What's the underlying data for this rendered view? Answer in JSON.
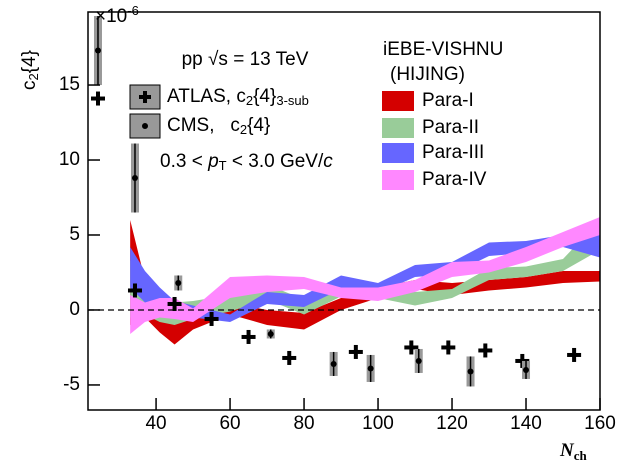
{
  "chart_data": {
    "type": "scatter",
    "ylabel": [
      "c",
      {
        "sub": "2"
      },
      "{4}"
    ],
    "xlabel": [
      {
        "it": "N"
      },
      {
        "sub": "ch"
      }
    ],
    "multiplier": [
      "×10",
      {
        "sup": "-6"
      }
    ],
    "energy_label": "pp √s = 13 TeV",
    "cut_label": [
      "0.3 < ",
      {
        "it": "p"
      },
      {
        "sub": "T"
      },
      " < 3.0 GeV/",
      {
        "it": "c"
      }
    ],
    "model_title": "iEBE-VISHNU",
    "model_subtitle": "(HIJING)",
    "xlim": [
      21.6,
      160
    ],
    "ylim": [
      -6.67,
      19.87
    ],
    "xticks": [
      40,
      60,
      80,
      100,
      120,
      140,
      160
    ],
    "yticks": [
      -5,
      0,
      5,
      10,
      15
    ],
    "series": [
      {
        "name": [
          "ATLAS, c",
          {
            "sub": "2"
          },
          "{4}",
          {
            "sub": "3-sub"
          }
        ],
        "marker": "cross",
        "color": "#000000",
        "x": [
          24.3,
          34.3,
          45,
          55,
          65,
          76,
          94,
          109,
          119,
          129,
          139,
          153
        ],
        "values": [
          14.1,
          1.3,
          0.4,
          -0.6,
          -1.8,
          -3.2,
          -2.8,
          -2.5,
          -2.5,
          -2.7,
          -3.4,
          -3.0
        ]
      },
      {
        "name": [
          "CMS,   c",
          {
            "sub": "2"
          },
          "{4}"
        ],
        "marker": "dot",
        "color": "#000000",
        "x": [
          24.3,
          34.3,
          46,
          71,
          88,
          98,
          111,
          125,
          140
        ],
        "values": [
          17.3,
          8.8,
          1.8,
          -1.6,
          -3.6,
          -3.9,
          -3.4,
          -4.1,
          -4.0
        ],
        "errors": [
          2.3,
          2.3,
          0.5,
          0.3,
          0.8,
          0.9,
          0.8,
          1.0,
          0.6
        ]
      }
    ],
    "bands": [
      {
        "name": "Para-I",
        "color": "#d40000",
        "x": [
          33,
          37,
          41,
          45,
          50,
          60,
          70,
          80,
          90,
          100,
          110,
          120,
          130,
          140,
          150,
          160
        ],
        "upper": [
          6.0,
          2.0,
          0.5,
          -0.5,
          0.0,
          0.5,
          0.0,
          -0.2,
          0.8,
          1.5,
          2.0,
          1.8,
          2.0,
          2.2,
          2.6,
          2.6
        ],
        "lower": [
          -1.0,
          -0.5,
          -1.5,
          -2.3,
          -1.3,
          -0.3,
          -1.0,
          -1.3,
          0.0,
          0.8,
          1.4,
          1.0,
          1.3,
          1.5,
          1.8,
          1.9
        ]
      },
      {
        "name": "Para-II",
        "color": "#99cc99",
        "x": [
          33,
          37,
          41,
          45,
          50,
          60,
          70,
          80,
          90,
          100,
          110,
          120,
          130,
          140,
          150,
          160
        ],
        "upper": [
          3.3,
          1.5,
          0.8,
          0.5,
          0.6,
          1.0,
          1.7,
          0.7,
          1.8,
          1.5,
          1.2,
          1.4,
          2.8,
          2.9,
          3.4,
          6.0
        ],
        "lower": [
          -0.5,
          -0.3,
          -0.8,
          -1.0,
          -0.6,
          -0.1,
          0.7,
          -0.3,
          0.9,
          0.8,
          0.3,
          0.8,
          2.0,
          2.2,
          2.6,
          4.0
        ]
      },
      {
        "name": "Para-III",
        "color": "#6666ff",
        "x": [
          33,
          37,
          41,
          45,
          50,
          60,
          70,
          80,
          90,
          100,
          110,
          120,
          130,
          140,
          150,
          160
        ],
        "upper": [
          4.2,
          2.6,
          1.5,
          0.6,
          0.3,
          -0.3,
          1.2,
          1.0,
          2.3,
          1.8,
          3.0,
          3.2,
          4.5,
          4.6,
          5.0,
          5.5
        ],
        "lower": [
          1.5,
          0.5,
          -0.2,
          -0.5,
          -0.5,
          -0.8,
          0.4,
          0.2,
          1.4,
          1.1,
          2.2,
          2.4,
          3.6,
          3.8,
          4.2,
          3.5
        ]
      },
      {
        "name": "Para-IV",
        "color": "#ff88ff",
        "x": [
          33,
          37,
          41,
          45,
          50,
          60,
          70,
          80,
          90,
          100,
          110,
          120,
          130,
          140,
          150,
          160
        ],
        "upper": [
          1.0,
          0.5,
          0.8,
          0.8,
          0.1,
          2.2,
          2.3,
          2.2,
          1.5,
          1.5,
          2.0,
          3.2,
          3.3,
          4.2,
          5.2,
          6.2
        ],
        "lower": [
          -1.6,
          -0.8,
          -0.5,
          -0.6,
          -0.8,
          0.8,
          1.2,
          1.4,
          0.8,
          0.6,
          1.2,
          2.2,
          2.5,
          3.2,
          4.2,
          5.0
        ]
      }
    ]
  }
}
